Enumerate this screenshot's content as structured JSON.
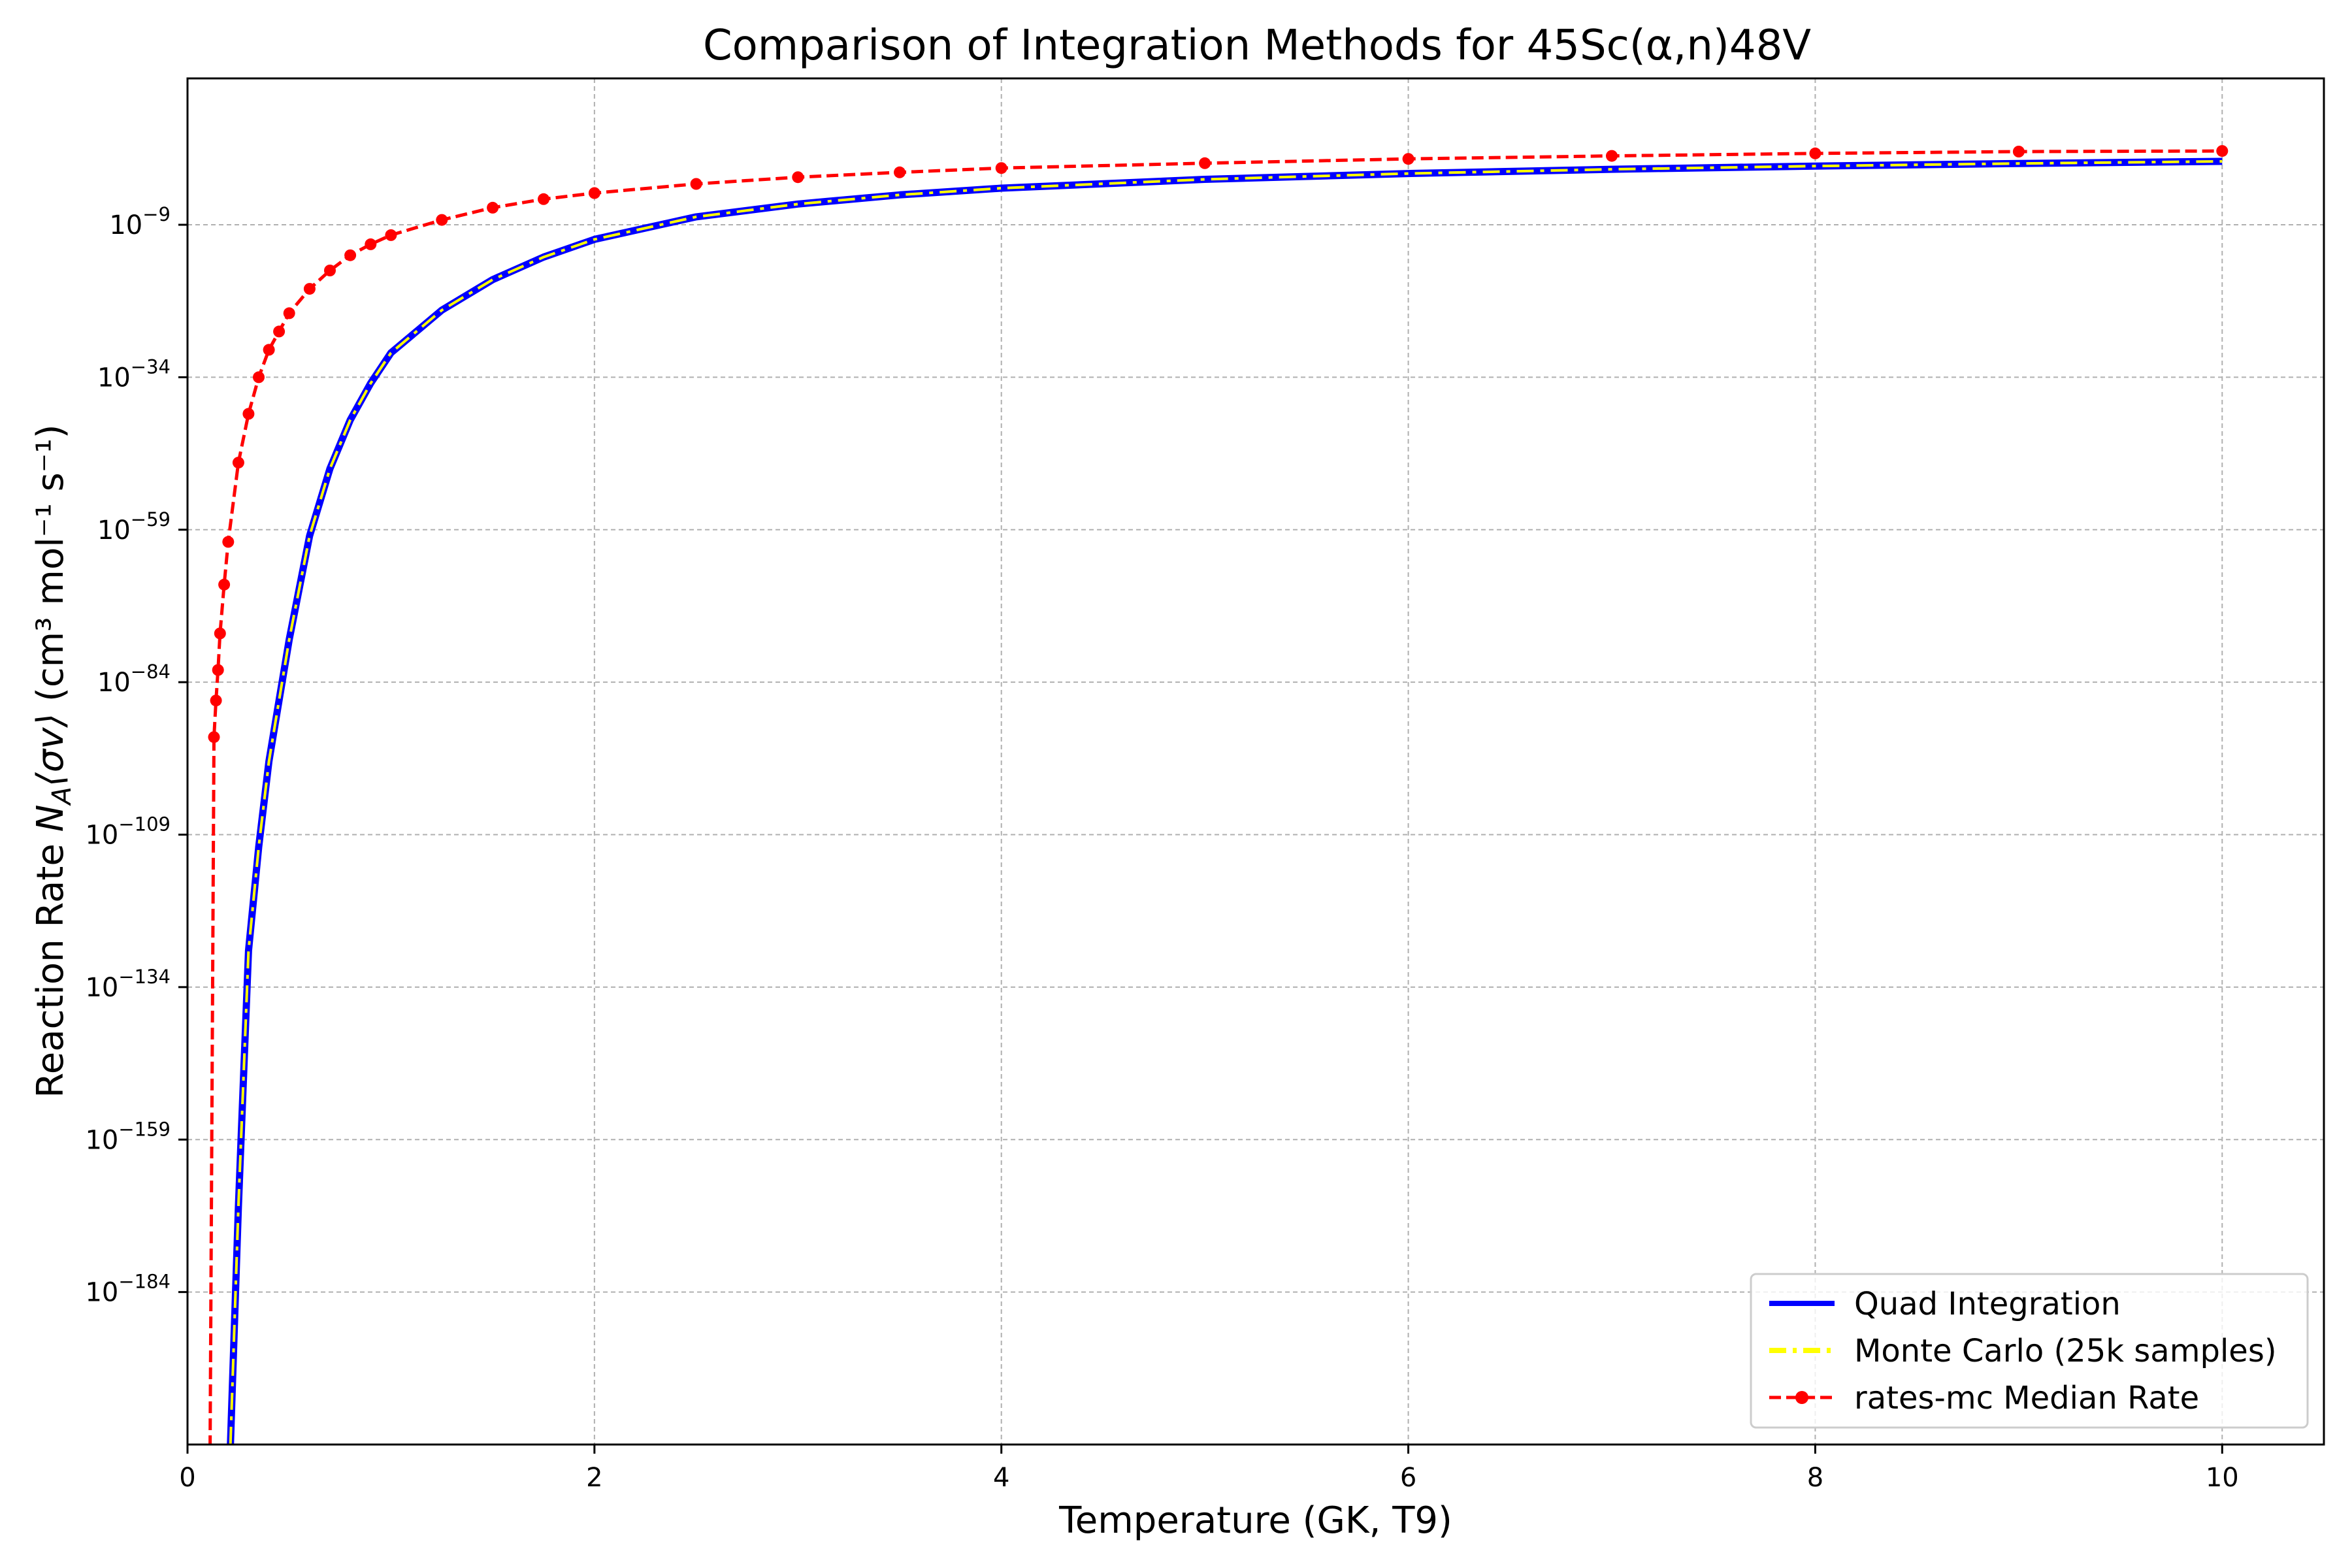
{
  "chart_data": {
    "type": "line",
    "title": "Comparison of Integration Methods for 45Sc(α,n)48V",
    "xlabel": "Temperature (GK, T9)",
    "ylabel_prefix": "Reaction Rate ",
    "ylabel_symbol": "N",
    "ylabel_sub": "A",
    "ylabel_sigma": "⟨σv⟩",
    "ylabel_units": " (cm³ mol⁻¹ s⁻¹)",
    "x_scale": "linear",
    "y_scale": "log",
    "xlim": [
      0,
      10.5
    ],
    "ylim_log10": [
      -209,
      15
    ],
    "x_ticks": [
      0,
      2,
      4,
      6,
      8,
      10
    ],
    "y_ticks_log10": [
      -184,
      -159,
      -134,
      -109,
      -84,
      -59,
      -34,
      -9
    ],
    "grid": true,
    "legend_position": "lower right",
    "series": [
      {
        "name": "Quad Integration",
        "color": "#0000ff",
        "style": "solid",
        "x": [
          0.2,
          0.22,
          0.25,
          0.3,
          0.35,
          0.4,
          0.45,
          0.5,
          0.6,
          0.7,
          0.8,
          0.9,
          1.0,
          1.25,
          1.5,
          1.75,
          2.0,
          2.5,
          3.0,
          3.5,
          4.0,
          5.0,
          6.0,
          7.0,
          8.0,
          9.0,
          10.0
        ],
        "log10_y": [
          -220,
          -200,
          -170,
          -128,
          -111,
          -97,
          -87,
          -77,
          -60,
          -49,
          -41,
          -35,
          -30,
          -23,
          -18,
          -14.3,
          -11.4,
          -7.7,
          -5.6,
          -4.1,
          -3.0,
          -1.55,
          -0.6,
          0.1,
          0.62,
          1.05,
          1.4
        ]
      },
      {
        "name": "Monte Carlo (25k samples)",
        "color": "#ffff00",
        "style": "dashdot",
        "x": [
          0.2,
          0.22,
          0.25,
          0.3,
          0.35,
          0.4,
          0.45,
          0.5,
          0.6,
          0.7,
          0.8,
          0.9,
          1.0,
          1.25,
          1.5,
          1.75,
          2.0,
          2.5,
          3.0,
          3.5,
          4.0,
          5.0,
          6.0,
          7.0,
          8.0,
          9.0,
          10.0
        ],
        "log10_y": [
          -220,
          -200,
          -170,
          -128,
          -111,
          -97,
          -87,
          -77,
          -60,
          -49,
          -41,
          -35,
          -30,
          -23,
          -18,
          -14.3,
          -11.4,
          -7.7,
          -5.6,
          -4.1,
          -3.0,
          -1.55,
          -0.6,
          0.1,
          0.62,
          1.05,
          1.4
        ]
      },
      {
        "name": "rates-mc Median Rate",
        "color": "#ff0000",
        "style": "dashed",
        "markers": true,
        "x": [
          0.11,
          0.13,
          0.14,
          0.15,
          0.16,
          0.18,
          0.2,
          0.25,
          0.3,
          0.35,
          0.4,
          0.45,
          0.5,
          0.6,
          0.7,
          0.8,
          0.9,
          1.0,
          1.25,
          1.5,
          1.75,
          2.0,
          2.5,
          3.0,
          3.5,
          4.0,
          5.0,
          6.0,
          7.0,
          8.0,
          9.0,
          10.0
        ],
        "log10_y": [
          -215,
          -93,
          -87,
          -82,
          -76,
          -68,
          -61,
          -48,
          -40,
          -34,
          -29.5,
          -26.5,
          -23.5,
          -19.5,
          -16.5,
          -14,
          -12.2,
          -10.7,
          -8.2,
          -6.2,
          -4.8,
          -3.8,
          -2.3,
          -1.2,
          -0.4,
          0.3,
          1.1,
          1.8,
          2.3,
          2.7,
          3.0,
          3.1
        ]
      }
    ]
  }
}
